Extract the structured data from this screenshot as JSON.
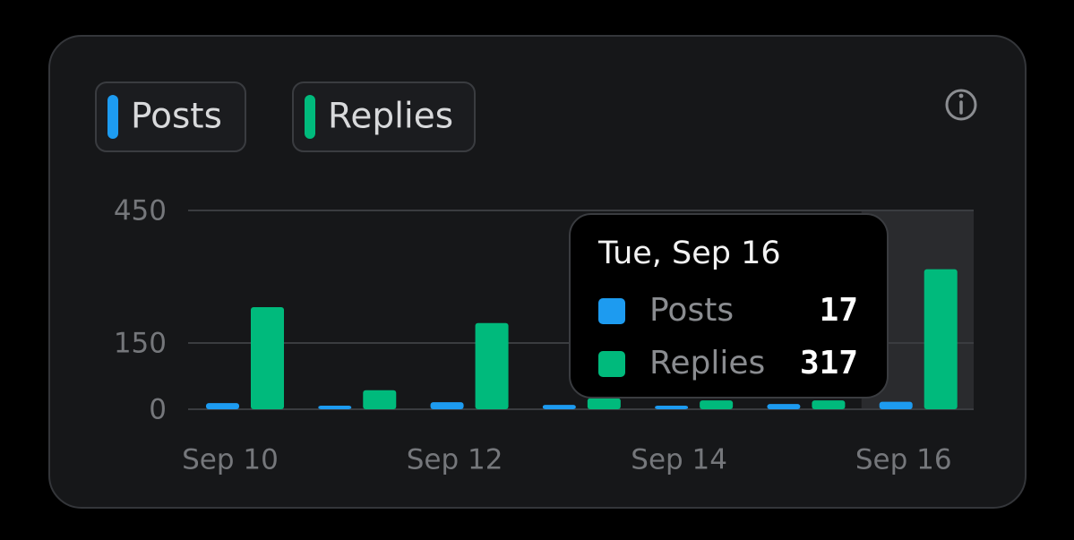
{
  "chart_data": {
    "type": "bar",
    "categories": [
      "Sep 10",
      null,
      "Sep 12",
      null,
      "Sep 14",
      null,
      "Sep 16"
    ],
    "series": [
      {
        "name": "Posts",
        "color": "#1d9bf0",
        "values": [
          14,
          8,
          16,
          10,
          8,
          12,
          17
        ]
      },
      {
        "name": "Replies",
        "color": "#00ba7c",
        "values": [
          231,
          43,
          195,
          25,
          20,
          20,
          317
        ]
      }
    ],
    "ylim": [
      0,
      450
    ],
    "yticks": [
      0,
      150,
      450
    ],
    "grid": true,
    "tooltip_title": "Tue, Sep 16"
  }
}
